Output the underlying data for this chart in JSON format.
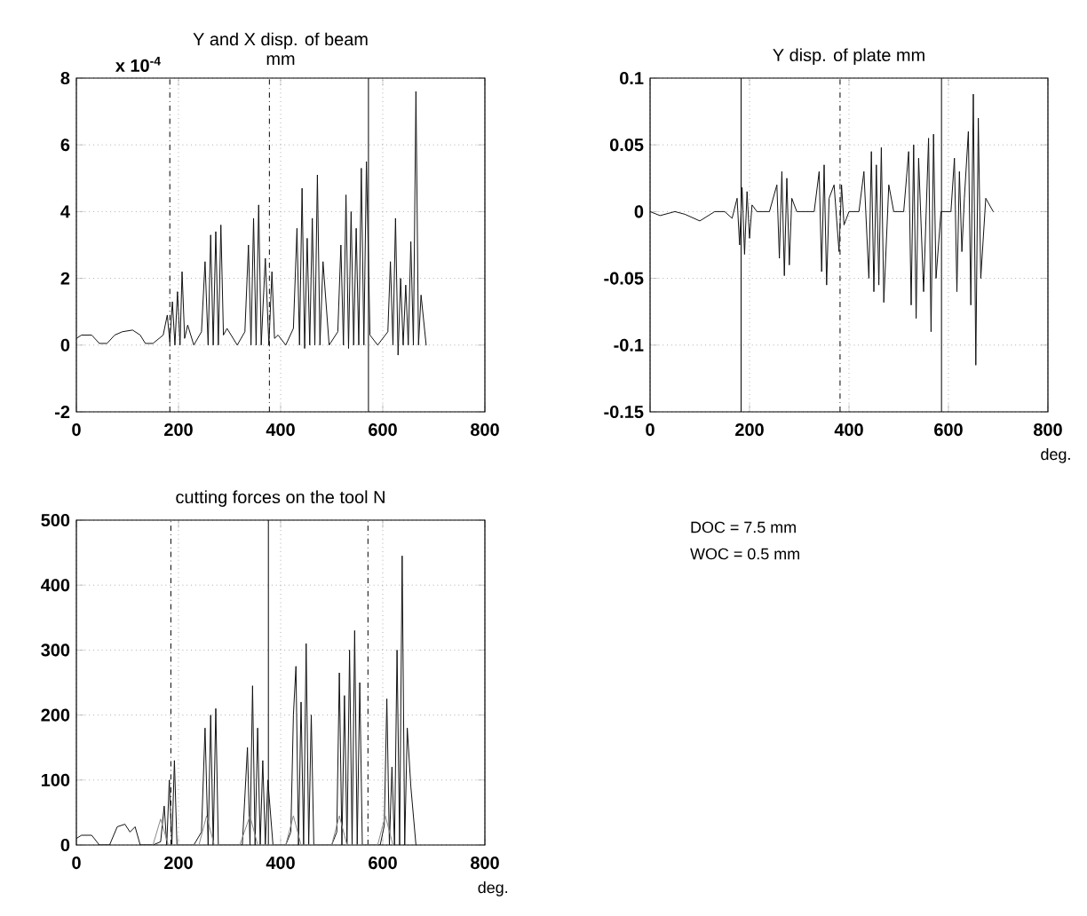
{
  "chart_data": [
    {
      "type": "line",
      "title": "Y and X disp. of beam\nmm",
      "annotations": [
        "x 10$^{-4}$"
      ],
      "xlim": [
        0,
        800
      ],
      "ylim": [
        -2,
        8
      ],
      "xticks": [
        0,
        200,
        400,
        600,
        800
      ],
      "yticks": [
        -2,
        0,
        2,
        4,
        6,
        8
      ],
      "grid": true,
      "x": [
        0,
        10,
        30,
        45,
        60,
        75,
        90,
        110,
        125,
        135,
        150,
        170,
        178,
        183,
        188,
        193,
        198,
        203,
        207,
        212,
        218,
        230,
        245,
        252,
        258,
        263,
        268,
        273,
        278,
        283,
        288,
        295,
        315,
        330,
        337,
        342,
        347,
        352,
        357,
        362,
        370,
        377,
        383,
        388,
        395,
        410,
        425,
        432,
        437,
        442,
        447,
        452,
        457,
        462,
        467,
        472,
        477,
        483,
        495,
        512,
        518,
        523,
        528,
        533,
        538,
        543,
        548,
        553,
        558,
        563,
        568,
        575,
        590,
        610,
        615,
        620,
        625,
        630,
        635,
        640,
        645,
        650,
        655,
        660,
        665,
        670,
        675,
        685
      ],
      "series": [
        {
          "color": "#111111",
          "values": [
            0.2,
            0.3,
            0.3,
            0.05,
            0.05,
            0.3,
            0.4,
            0.45,
            0.3,
            0.05,
            0.05,
            0.3,
            0.9,
            0.1,
            1.3,
            0,
            1.6,
            0,
            2.2,
            0.2,
            0.6,
            0,
            0.4,
            2.5,
            0,
            3.3,
            0,
            3.4,
            0,
            3.6,
            0.3,
            0.5,
            0,
            0.4,
            3,
            0,
            3.8,
            0,
            4.2,
            0,
            2.6,
            0,
            2.2,
            0.2,
            0.3,
            0,
            0.5,
            3.5,
            0,
            4.7,
            -0.1,
            3.2,
            0,
            3.8,
            0,
            5.1,
            0,
            2.5,
            0,
            0.4,
            3,
            0,
            4.5,
            -0.1,
            4,
            0,
            3.5,
            0,
            5.3,
            0,
            5.5,
            0.3,
            0,
            0.4,
            2.5,
            0,
            3.8,
            -0.3,
            2,
            0,
            1.8,
            0,
            3.1,
            0,
            7.6,
            0,
            1.5,
            0
          ]
        }
      ],
      "ref_lines": [
        {
          "axis": "x",
          "value": 183,
          "line_style": "dashed"
        },
        {
          "axis": "x",
          "value": 378,
          "line_style": "dashed"
        },
        {
          "axis": "x",
          "value": 572,
          "line_style": "solid"
        }
      ]
    },
    {
      "type": "line",
      "title": "Y  disp. of  plate  mm",
      "xlabel": "deg.",
      "xlim": [
        0,
        800
      ],
      "ylim": [
        -0.15,
        0.1
      ],
      "xticks": [
        0,
        200,
        400,
        600,
        800
      ],
      "yticks": [
        -0.15,
        -0.1,
        -0.05,
        0,
        0.05,
        0.1
      ],
      "grid": true,
      "x": [
        0,
        20,
        50,
        70,
        100,
        130,
        150,
        165,
        175,
        180,
        185,
        190,
        195,
        200,
        205,
        215,
        240,
        255,
        260,
        265,
        270,
        275,
        280,
        285,
        295,
        330,
        340,
        345,
        350,
        355,
        360,
        370,
        380,
        385,
        390,
        400,
        420,
        430,
        440,
        445,
        450,
        455,
        460,
        465,
        470,
        480,
        490,
        510,
        520,
        525,
        530,
        535,
        540,
        550,
        560,
        565,
        570,
        575,
        585,
        605,
        612,
        617,
        622,
        627,
        632,
        640,
        645,
        650,
        655,
        660,
        665,
        675,
        690
      ],
      "series": [
        {
          "color": "#111111",
          "values": [
            0,
            -0.003,
            0,
            -0.002,
            -0.007,
            0,
            0,
            -0.005,
            0.01,
            -0.025,
            0.018,
            -0.032,
            0.015,
            -0.02,
            0.005,
            0,
            0,
            0.02,
            -0.035,
            0.03,
            -0.048,
            0.025,
            -0.04,
            0.01,
            0,
            0,
            0.03,
            -0.045,
            0.035,
            -0.055,
            0.01,
            0.02,
            -0.03,
            0.02,
            -0.01,
            0,
            0,
            0.03,
            -0.05,
            0.045,
            -0.06,
            0.035,
            -0.055,
            0.048,
            -0.068,
            0.02,
            0,
            0,
            0.045,
            -0.07,
            0.05,
            -0.08,
            0.04,
            -0.06,
            0.055,
            -0.09,
            0.058,
            -0.05,
            0,
            0,
            0.04,
            -0.06,
            0.03,
            -0.03,
            0.01,
            0.06,
            -0.07,
            0.088,
            -0.115,
            0.07,
            -0.05,
            0.01,
            0
          ]
        }
      ],
      "ref_lines": [
        {
          "axis": "x",
          "value": 183,
          "line_style": "solid"
        },
        {
          "axis": "x",
          "value": 382,
          "line_style": "dashed"
        },
        {
          "axis": "x",
          "value": 586,
          "line_style": "solid"
        }
      ]
    },
    {
      "type": "line",
      "title": "cutting forces on the tool   N",
      "xlabel": "deg.",
      "xlim": [
        0,
        800
      ],
      "ylim": [
        0,
        500
      ],
      "xticks": [
        0,
        200,
        400,
        600,
        800
      ],
      "yticks": [
        0,
        100,
        200,
        300,
        400,
        500
      ],
      "grid": true,
      "x": [
        0,
        10,
        30,
        45,
        65,
        80,
        95,
        105,
        115,
        125,
        150,
        165,
        172,
        177,
        182,
        187,
        192,
        197,
        205,
        230,
        245,
        252,
        258,
        263,
        268,
        273,
        278,
        285,
        295,
        325,
        335,
        340,
        345,
        350,
        355,
        360,
        365,
        370,
        375,
        385,
        410,
        420,
        425,
        430,
        435,
        440,
        445,
        450,
        455,
        460,
        465,
        475,
        500,
        510,
        515,
        520,
        525,
        530,
        535,
        540,
        545,
        550,
        555,
        560,
        570,
        595,
        603,
        608,
        613,
        618,
        623,
        628,
        633,
        638,
        643,
        648,
        655,
        665
      ],
      "series": [
        {
          "color": "#111111",
          "values": [
            10,
            15,
            15,
            0,
            0,
            28,
            32,
            20,
            28,
            0,
            0,
            5,
            60,
            0,
            100,
            0,
            130,
            0,
            0,
            0,
            20,
            180,
            0,
            200,
            0,
            210,
            0,
            0,
            0,
            0,
            150,
            0,
            245,
            0,
            180,
            0,
            130,
            0,
            100,
            0,
            0,
            20,
            200,
            275,
            0,
            220,
            0,
            310,
            0,
            200,
            0,
            0,
            0,
            20,
            265,
            0,
            230,
            0,
            300,
            0,
            330,
            0,
            250,
            0,
            0,
            0,
            30,
            225,
            0,
            120,
            0,
            300,
            0,
            445,
            0,
            180,
            90,
            0
          ]
        },
        {
          "color": "#8a8a8a",
          "x": [
            150,
            165,
            180,
            240,
            255,
            270,
            320,
            340,
            355,
            410,
            425,
            440,
            500,
            515,
            530,
            590,
            605,
            620
          ],
          "values": [
            0,
            40,
            0,
            0,
            45,
            0,
            0,
            45,
            0,
            0,
            45,
            0,
            0,
            45,
            0,
            0,
            45,
            0
          ]
        }
      ],
      "ref_lines": [
        {
          "axis": "x",
          "value": 185,
          "line_style": "dashed"
        },
        {
          "axis": "x",
          "value": 376,
          "line_style": "solid"
        },
        {
          "axis": "x",
          "value": 571,
          "line_style": "dashed"
        }
      ]
    },
    {
      "type": "other",
      "annotations": [
        "DOC = 7.5 mm",
        "WOC = 0.5 mm"
      ]
    }
  ]
}
